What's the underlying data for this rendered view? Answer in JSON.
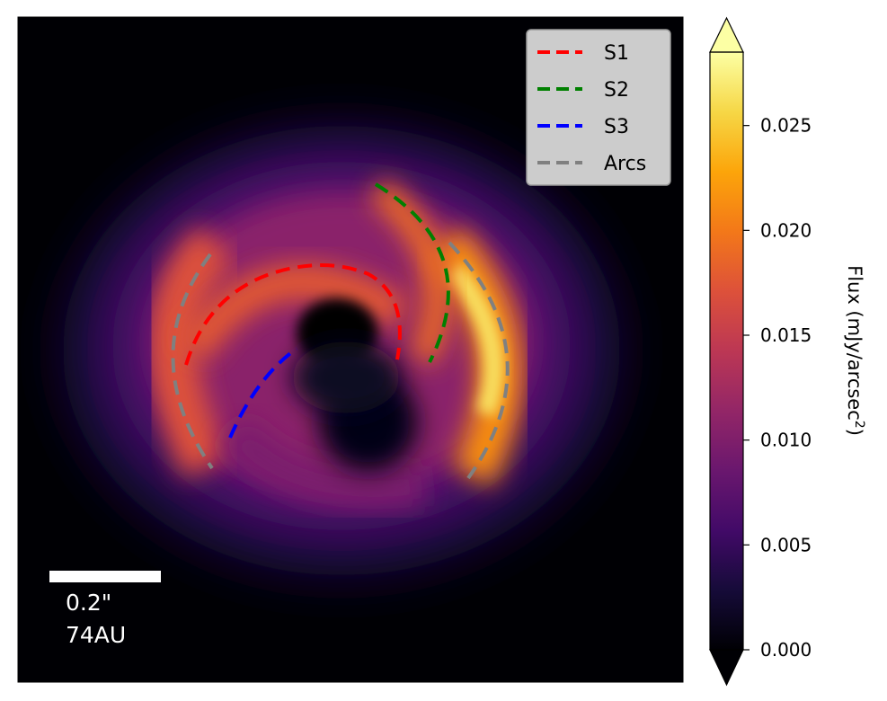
{
  "chart_data": {
    "type": "heatmap",
    "title": "",
    "colormap": "inferno",
    "colorbar": {
      "label": "Flux (mJy/arcsec",
      "label_superscript": "2",
      "label_close": ")",
      "vmin": 0.0,
      "vmax": 0.0285,
      "extend": "both",
      "ticks": [
        0.0,
        0.005,
        0.01,
        0.015,
        0.02,
        0.025
      ],
      "tick_labels": [
        "0.000",
        "0.005",
        "0.010",
        "0.015",
        "0.020",
        "0.025"
      ]
    },
    "legend": {
      "placement": "top-right",
      "entries": [
        {
          "name": "S1",
          "color": "#ff0000",
          "style": "dashed"
        },
        {
          "name": "S2",
          "color": "#008000",
          "style": "dashed"
        },
        {
          "name": "S3",
          "color": "#0000ff",
          "style": "dashed"
        },
        {
          "name": "Arcs",
          "color": "#808080",
          "style": "dashed"
        }
      ]
    },
    "scale_bar": {
      "angular": "0.2\"",
      "physical": "74AU",
      "color": "#ffffff"
    },
    "features": [
      {
        "name": "S1",
        "shape": "arc around central cavity"
      },
      {
        "name": "S2",
        "shape": "arc right of center"
      },
      {
        "name": "S3",
        "shape": "arc lower-left of center"
      },
      {
        "name": "Arcs",
        "shape": "two outer arcs (left and right)"
      }
    ]
  }
}
